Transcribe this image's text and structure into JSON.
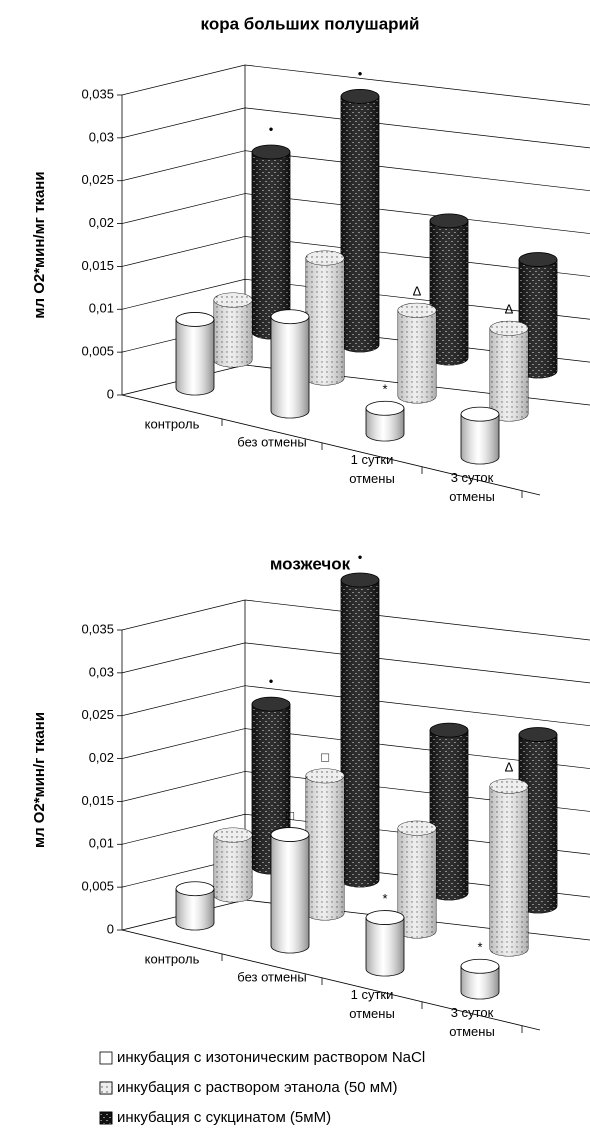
{
  "chart_data": [
    {
      "type": "bar3d",
      "title": "кора больших полушарий",
      "y_label": "мл О2*мин/мг ткани",
      "categories": [
        "контроль",
        "без отмены",
        "1 сутки отмены",
        "3 суток отмены"
      ],
      "ylim": [
        0,
        0.035
      ],
      "yticks": [
        0,
        {
          "value": 0.005,
          "label": "0,005"
        },
        {
          "value": 0.01,
          "label": "0,01"
        },
        {
          "value": 0.015,
          "label": "0,015"
        },
        {
          "value": 0.02,
          "label": "0,02"
        },
        {
          "value": 0.025,
          "label": "0,025"
        },
        {
          "value": 0.03,
          "label": "0,03"
        },
        {
          "value": 0.035,
          "label": "0,035"
        }
      ],
      "grid": true,
      "series": [
        {
          "color": "#ffffff",
          "values": [
            0.008,
            0.011,
            0.003,
            0.005
          ],
          "markers": [
            null,
            null,
            "*",
            null
          ]
        },
        {
          "color": "#dcdcdc",
          "values": [
            0.007,
            0.014,
            0.01,
            0.01
          ],
          "markers": [
            null,
            null,
            "Δ",
            "Δ"
          ]
        },
        {
          "color": "#222222",
          "values": [
            0.021,
            0.029,
            0.016,
            0.013
          ],
          "markers": [
            "•",
            "•",
            null,
            null
          ]
        }
      ]
    },
    {
      "type": "bar3d",
      "title": "мозжечок",
      "y_label": "мл О2*мин/г ткани",
      "categories": [
        "контроль",
        "без отмены",
        "1 сутки отмены",
        "3 суток отмены"
      ],
      "ylim": [
        0,
        0.035
      ],
      "yticks": [
        0,
        {
          "value": 0.005,
          "label": "0,005"
        },
        {
          "value": 0.01,
          "label": "0,01"
        },
        {
          "value": 0.015,
          "label": "0,015"
        },
        {
          "value": 0.02,
          "label": "0,02"
        },
        {
          "value": 0.025,
          "label": "0,025"
        },
        {
          "value": 0.03,
          "label": "0,03"
        },
        {
          "value": 0.035,
          "label": "0,035"
        }
      ],
      "grid": true,
      "series": [
        {
          "name": "инкубация с изотоническим раствором NaCl",
          "color": "#ffffff",
          "values": [
            0.004,
            0.013,
            0.006,
            0.003
          ],
          "markers": [
            null,
            "□",
            "*",
            "*"
          ]
        },
        {
          "name": "инкубация с раствором этанола (50 мМ)",
          "color": "#dcdcdc",
          "values": [
            0.007,
            0.016,
            0.012,
            0.019
          ],
          "markers": [
            null,
            "□",
            null,
            "Δ"
          ]
        },
        {
          "name": "инкубация с сукцинатом (5мМ)",
          "color": "#222222",
          "values": [
            0.019,
            0.035,
            0.019,
            0.02
          ],
          "markers": [
            "•",
            "•",
            null,
            null
          ]
        }
      ]
    }
  ]
}
